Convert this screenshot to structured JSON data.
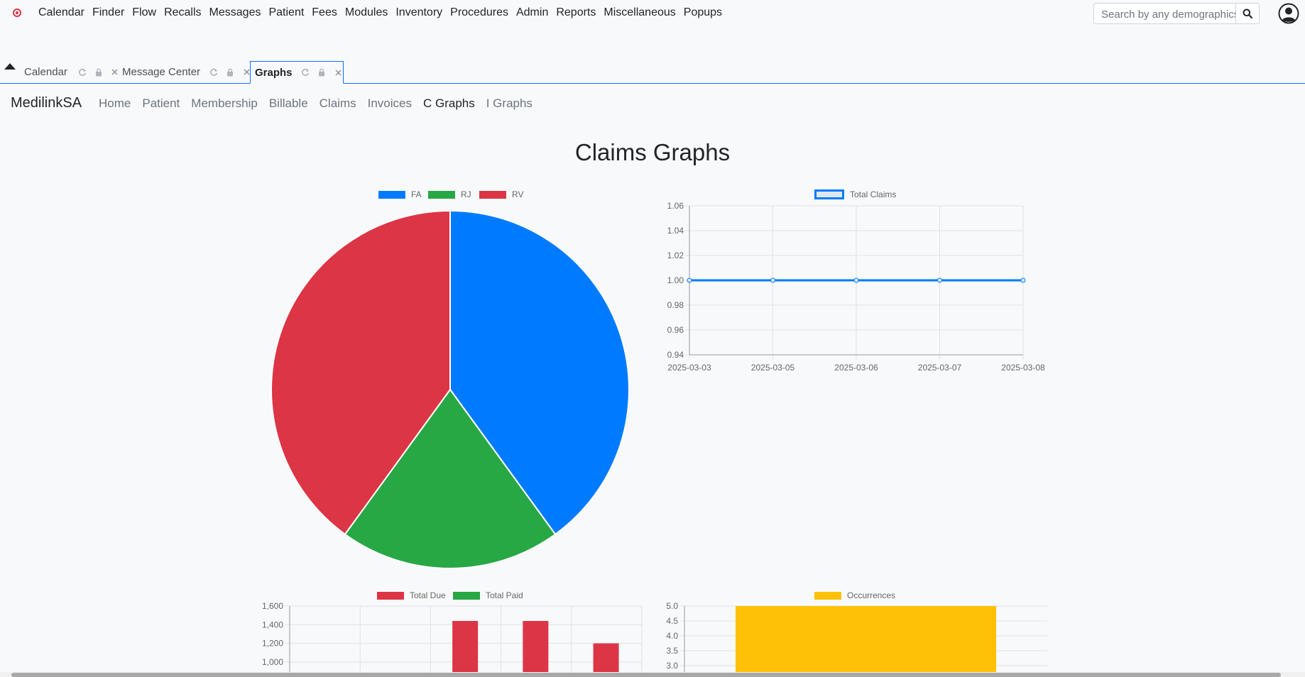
{
  "topnav": {
    "menu": [
      "Calendar",
      "Finder",
      "Flow",
      "Recalls",
      "Messages",
      "Patient",
      "Fees",
      "Modules",
      "Inventory",
      "Procedures",
      "Admin",
      "Reports",
      "Miscellaneous",
      "Popups"
    ],
    "search_placeholder": "Search by any demographics"
  },
  "tabs": [
    {
      "label": "Calendar"
    },
    {
      "label": "Message Center"
    },
    {
      "label": "Graphs"
    }
  ],
  "app": {
    "brand": "MedilinkSA",
    "nav": [
      "Home",
      "Patient",
      "Membership",
      "Billable",
      "Claims",
      "Invoices",
      "C Graphs",
      "I Graphs"
    ],
    "active_nav": "C Graphs"
  },
  "page_title": "Claims Graphs",
  "colors": {
    "blue": "#007bff",
    "green": "#28a745",
    "red": "#dc3545",
    "yellow": "#ffc107"
  },
  "chart_data": [
    {
      "type": "pie",
      "labels": [
        "FA",
        "RJ",
        "RV"
      ],
      "values": [
        2,
        1,
        2
      ],
      "colors": [
        "#007bff",
        "#28a745",
        "#dc3545"
      ]
    },
    {
      "type": "line",
      "series": [
        {
          "name": "Total Claims",
          "values": [
            1,
            1,
            1,
            1,
            1
          ]
        }
      ],
      "x": [
        "2025-03-03",
        "2025-03-05",
        "2025-03-06",
        "2025-03-07",
        "2025-03-08"
      ],
      "yticks": [
        "1.06",
        "1.04",
        "1.02",
        "1.00",
        "0.98",
        "0.96",
        "0.94"
      ],
      "ylim": [
        0.94,
        1.06
      ]
    },
    {
      "type": "bar",
      "series": [
        {
          "name": "Total Due",
          "values": [
            null,
            null,
            1440,
            1440,
            1200
          ]
        },
        {
          "name": "Total Paid",
          "values": [
            null,
            null,
            null,
            null,
            null
          ]
        }
      ],
      "yticks": [
        "1,600",
        "1,400",
        "1,200",
        "1,000"
      ],
      "ylim_visible": [
        1000,
        1600
      ]
    },
    {
      "type": "bar",
      "series": [
        {
          "name": "Occurrences",
          "values": [
            5
          ]
        }
      ],
      "yticks": [
        "5.0",
        "4.5",
        "4.0",
        "3.5",
        "3.0"
      ],
      "ylim_visible": [
        3,
        5
      ]
    }
  ]
}
